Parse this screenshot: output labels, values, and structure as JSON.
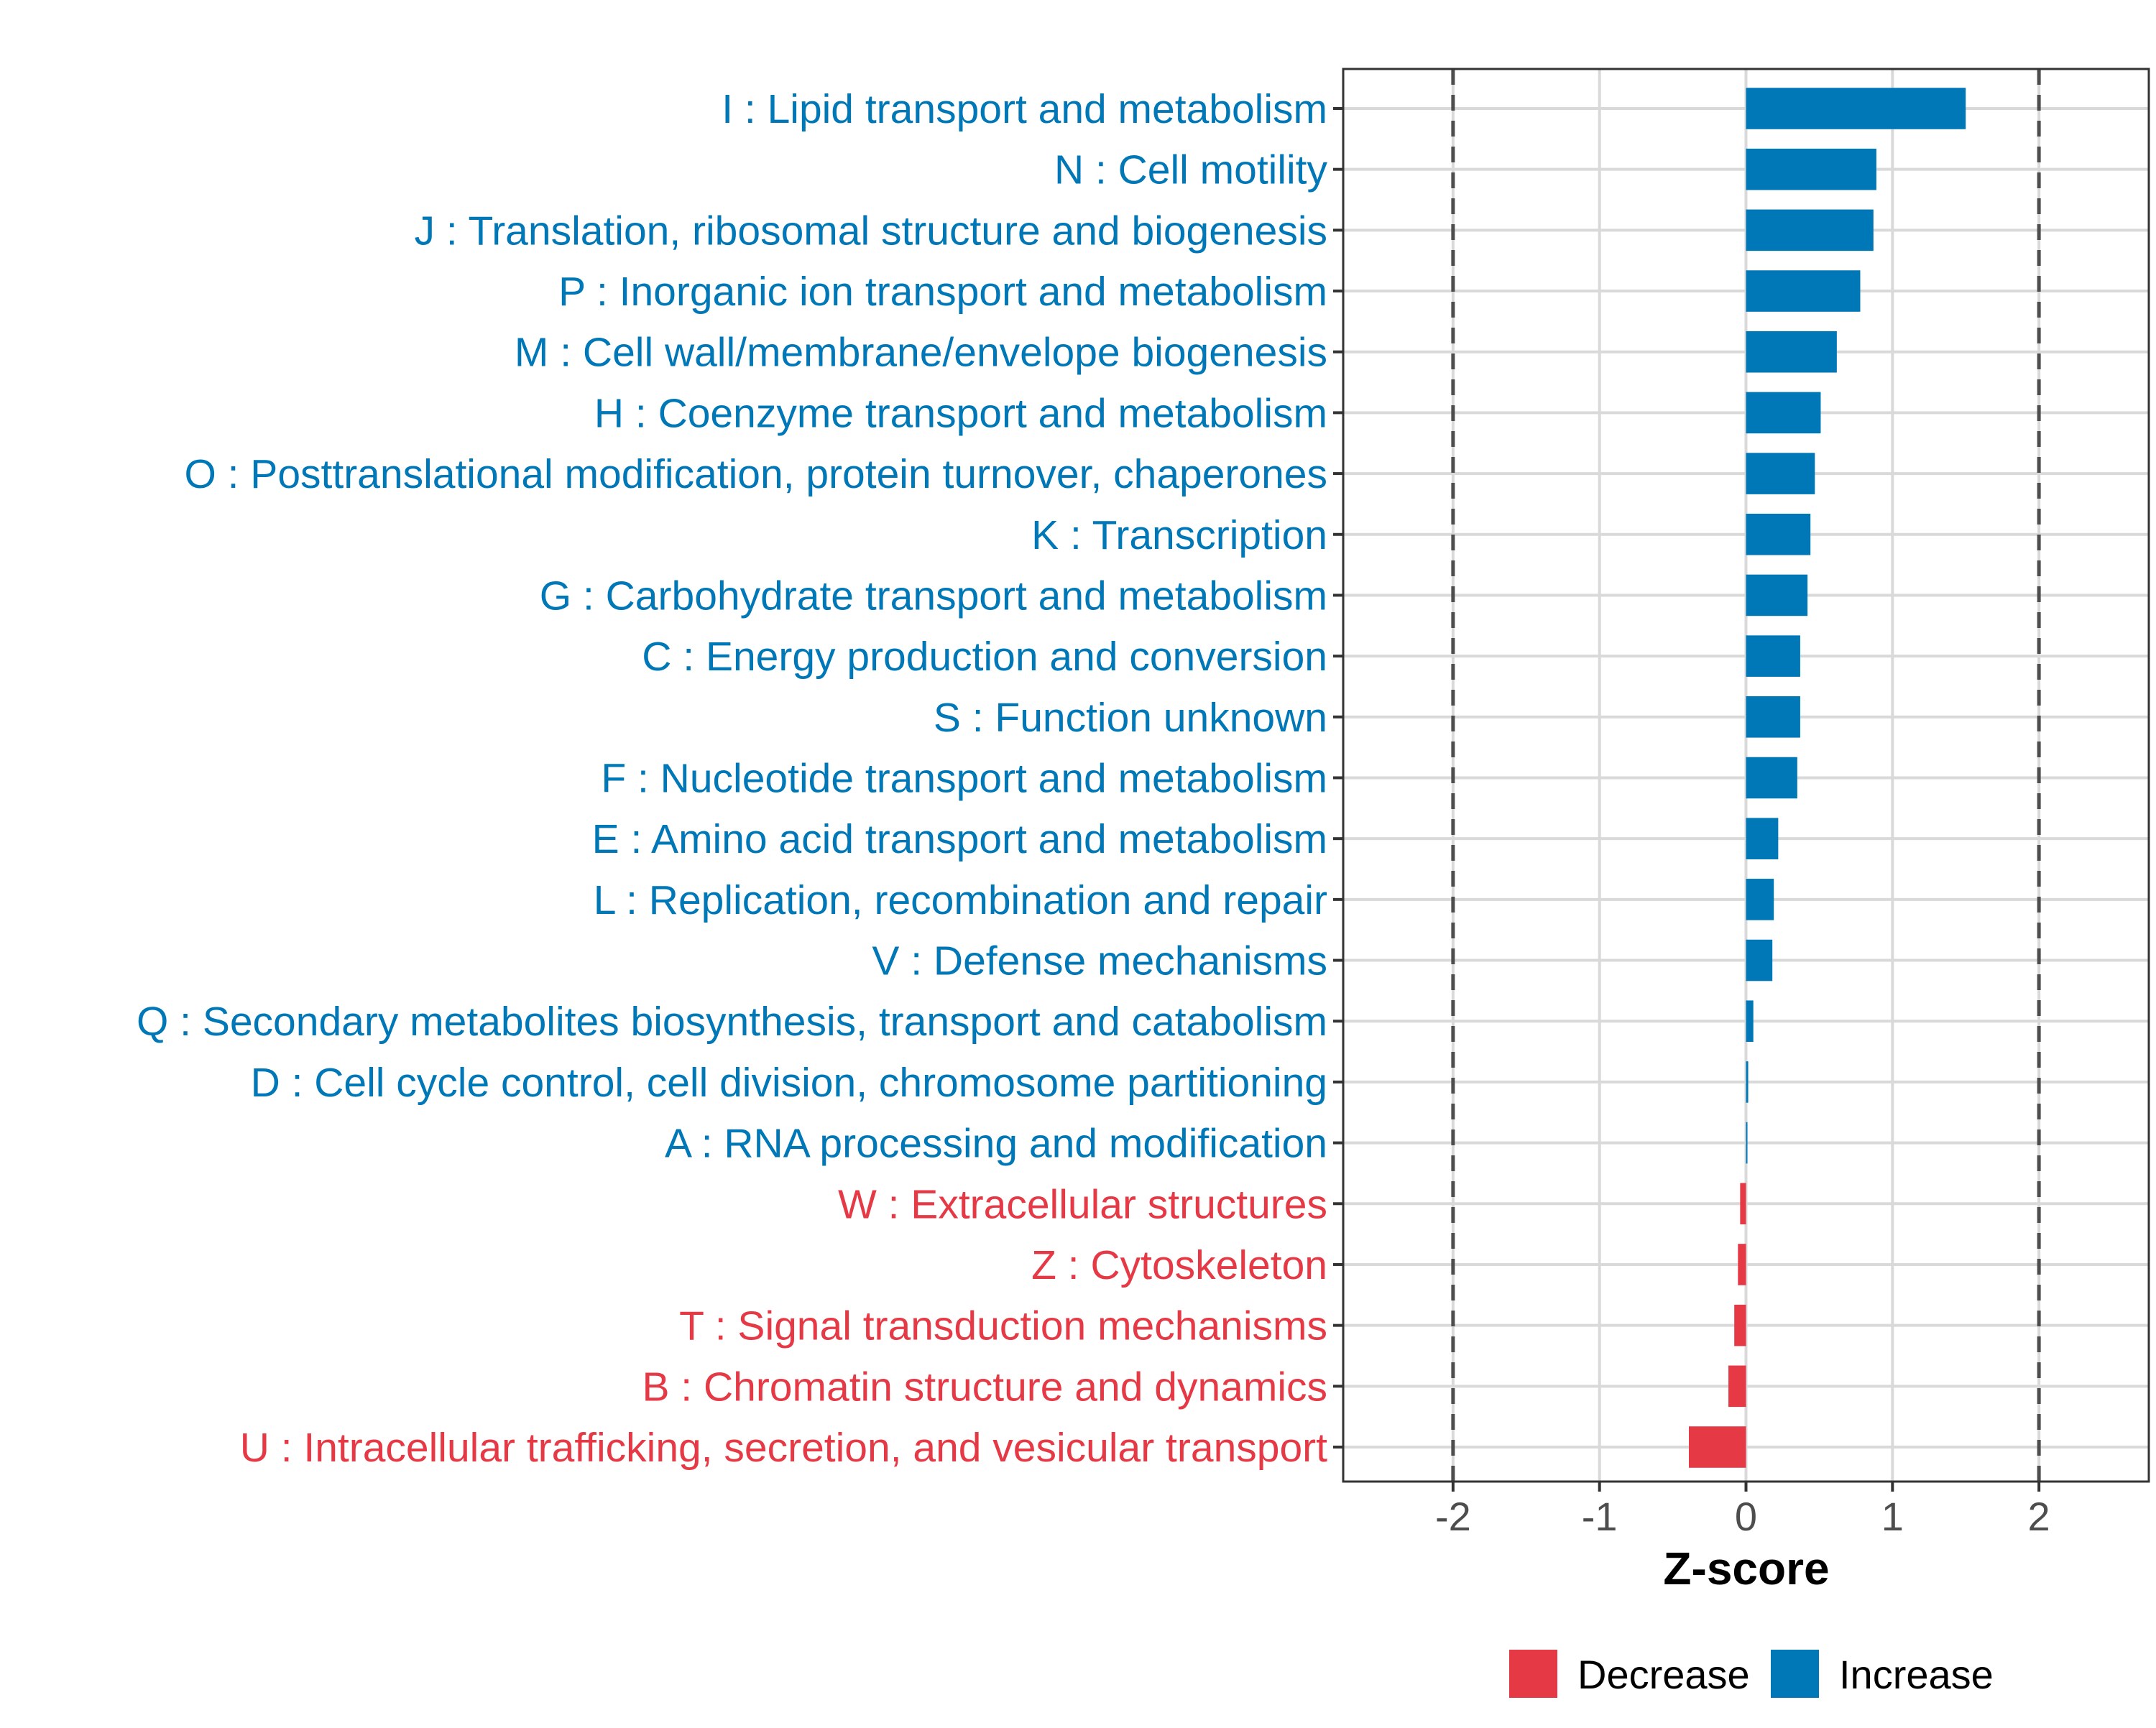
{
  "chart_data": {
    "type": "bar",
    "orientation": "horizontal",
    "title": "",
    "xlabel": "Z-score",
    "ylabel": "",
    "xlim": [
      -2.75,
      2.75
    ],
    "xticks": [
      -2,
      -1,
      0,
      1,
      2
    ],
    "xtick_labels": [
      "-2",
      "-1",
      "0",
      "1",
      "2"
    ],
    "reference_lines": [
      -2,
      2
    ],
    "grid": true,
    "colors": {
      "Increase": "#0077b6",
      "Decrease": "#e63946",
      "grid": "#d9d9d9",
      "ref_line": "#4d4d4d",
      "axis_text": "#4d4d4d"
    },
    "legend": {
      "position": "bottom",
      "entries": [
        {
          "label": "Decrease",
          "color": "#e63946"
        },
        {
          "label": "Increase",
          "color": "#0077b6"
        }
      ]
    },
    "categories": [
      {
        "label": "I : Lipid transport and metabolism",
        "value": 1.5,
        "direction": "Increase"
      },
      {
        "label": "N : Cell motility",
        "value": 0.89,
        "direction": "Increase"
      },
      {
        "label": "J : Translation, ribosomal structure and biogenesis",
        "value": 0.87,
        "direction": "Increase"
      },
      {
        "label": "P : Inorganic ion transport and metabolism",
        "value": 0.78,
        "direction": "Increase"
      },
      {
        "label": "M : Cell wall/membrane/envelope biogenesis",
        "value": 0.62,
        "direction": "Increase"
      },
      {
        "label": "H : Coenzyme transport and metabolism",
        "value": 0.51,
        "direction": "Increase"
      },
      {
        "label": "O : Posttranslational modification, protein turnover, chaperones",
        "value": 0.47,
        "direction": "Increase"
      },
      {
        "label": "K : Transcription",
        "value": 0.44,
        "direction": "Increase"
      },
      {
        "label": "G : Carbohydrate transport and metabolism",
        "value": 0.42,
        "direction": "Increase"
      },
      {
        "label": "C : Energy production and conversion",
        "value": 0.37,
        "direction": "Increase"
      },
      {
        "label": "S : Function unknown",
        "value": 0.37,
        "direction": "Increase"
      },
      {
        "label": "F : Nucleotide transport and metabolism",
        "value": 0.35,
        "direction": "Increase"
      },
      {
        "label": "E : Amino acid transport and metabolism",
        "value": 0.22,
        "direction": "Increase"
      },
      {
        "label": "L : Replication, recombination and repair",
        "value": 0.19,
        "direction": "Increase"
      },
      {
        "label": "V : Defense mechanisms",
        "value": 0.18,
        "direction": "Increase"
      },
      {
        "label": "Q : Secondary metabolites biosynthesis, transport and catabolism",
        "value": 0.05,
        "direction": "Increase"
      },
      {
        "label": "D : Cell cycle control, cell division, chromosome partitioning",
        "value": 0.015,
        "direction": "Increase"
      },
      {
        "label": "A : RNA processing and modification",
        "value": 0.01,
        "direction": "Increase"
      },
      {
        "label": "W : Extracellular structures",
        "value": -0.04,
        "direction": "Decrease"
      },
      {
        "label": "Z : Cytoskeleton",
        "value": -0.055,
        "direction": "Decrease"
      },
      {
        "label": "T : Signal transduction mechanisms",
        "value": -0.08,
        "direction": "Decrease"
      },
      {
        "label": "B : Chromatin structure and dynamics",
        "value": -0.12,
        "direction": "Decrease"
      },
      {
        "label": "U : Intracellular trafficking, secretion, and vesicular transport",
        "value": -0.39,
        "direction": "Decrease"
      }
    ]
  }
}
